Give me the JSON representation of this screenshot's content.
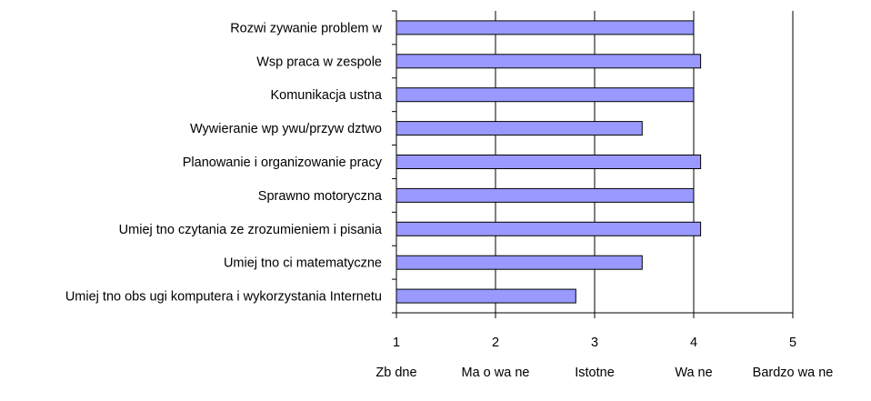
{
  "chart_data": {
    "type": "bar",
    "orientation": "horizontal",
    "categories": [
      "Rozwi zywanie problem w",
      "Wsp praca w zespole",
      "Komunikacja ustna",
      "Wywieranie wp ywu/przyw dztwo",
      "Planowanie i organizowanie pracy",
      "Sprawno motoryczna",
      "Umiej tno czytania ze zrozumieniem i pisania",
      "Umiej tno ci matematyczne",
      "Umiej tno obs ugi komputera i wykorzystania Internetu"
    ],
    "values": [
      4.0,
      4.07,
      4.0,
      3.48,
      4.07,
      4.0,
      4.07,
      3.48,
      2.81
    ],
    "xlim": [
      1,
      5
    ],
    "xticks": [
      1,
      2,
      3,
      4,
      5
    ],
    "xtick_labels": [
      "1",
      "2",
      "3",
      "4",
      "5"
    ],
    "rating_labels": [
      "Zb dne",
      "Ma o wa ne",
      "Istotne",
      "Wa ne",
      "Bardzo wa ne"
    ],
    "grid": "vertical",
    "legend": "none",
    "bar_color": "#9999ff",
    "bar_edge_color": "#000000",
    "title": "",
    "xlabel": "",
    "ylabel": ""
  }
}
